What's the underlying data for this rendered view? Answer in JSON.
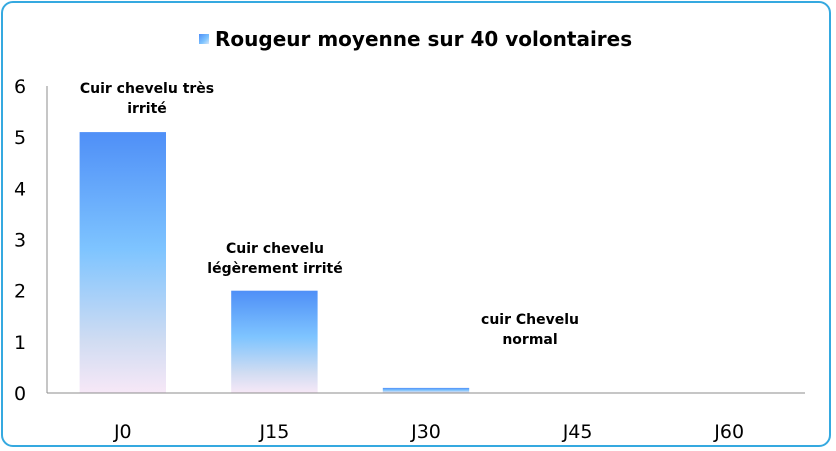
{
  "chart_data": {
    "type": "bar",
    "title": "",
    "xlabel": "",
    "ylabel": "",
    "categories": [
      "J0",
      "J15",
      "J30",
      "J45",
      "J60"
    ],
    "series": [
      {
        "name": "Rougeur moyenne sur 40 volontaires",
        "values": [
          5.1,
          2.0,
          0.1,
          0,
          0
        ]
      }
    ],
    "ylim": [
      0,
      6
    ],
    "yticks": [
      "0",
      "1",
      "2",
      "3",
      "4",
      "5",
      "6"
    ],
    "grid": false,
    "legend_position": "top",
    "colors": {
      "bar_top": "#4f8ff7",
      "bar_mid": "#7ec4ff",
      "bar_bottom": "#f7e8f7",
      "axis": "#8c8c8c",
      "frame": "#35a9e0"
    },
    "annotations": [
      {
        "text_lines": [
          "Cuir chevelu très",
          "irrité"
        ]
      },
      {
        "text_lines": [
          "Cuir chevelu",
          "légèrement irrité"
        ]
      },
      {
        "text_lines": [
          "cuir Chevelu",
          "normal"
        ]
      }
    ]
  }
}
